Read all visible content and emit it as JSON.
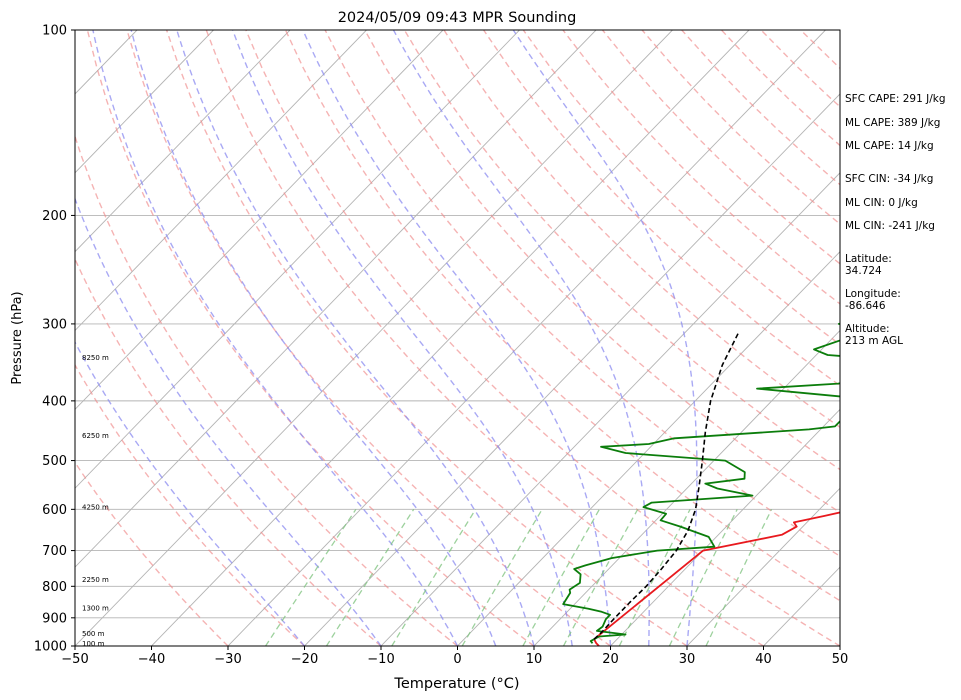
{
  "chart_data": {
    "type": "line",
    "title": "2024/05/09 09:43 MPR Sounding",
    "xlabel": "Temperature (°C)",
    "ylabel": "Pressure (hPa)",
    "xlim": [
      -50,
      50
    ],
    "ylim": [
      1000,
      100
    ],
    "y_scale": "log",
    "skew": "skew-T",
    "x_ticks": [
      -50,
      -40,
      -30,
      -20,
      -10,
      0,
      10,
      20,
      30,
      40,
      50
    ],
    "y_ticks": [
      100,
      200,
      300,
      400,
      500,
      600,
      700,
      800,
      900,
      1000
    ],
    "grid": true,
    "height_labels": [
      {
        "p": 990,
        "text": "100 m"
      },
      {
        "p": 955,
        "text": "500 m"
      },
      {
        "p": 868,
        "text": "1300 m"
      },
      {
        "p": 780,
        "text": "2250 m"
      },
      {
        "p": 595,
        "text": "4250 m"
      },
      {
        "p": 455,
        "text": "6250 m"
      },
      {
        "p": 340,
        "text": "8250 m"
      }
    ],
    "series": [
      {
        "color": "#e8191e",
        "points": [
          [
            1000,
            18.5
          ],
          [
            990,
            17.8
          ],
          [
            975,
            17.0
          ],
          [
            700,
            20.0
          ],
          [
            660,
            28.3
          ],
          [
            640,
            29.2
          ],
          [
            630,
            28.3
          ],
          [
            615,
            31.5
          ],
          [
            600,
            34.5
          ],
          [
            580,
            37.5
          ],
          [
            560,
            39.5
          ],
          [
            545,
            41.0
          ],
          [
            530,
            42.0
          ],
          [
            512,
            40.7
          ],
          [
            495,
            35.7
          ],
          [
            485,
            37.0
          ],
          [
            460,
            35.0
          ],
          [
            440,
            34.5
          ],
          [
            420,
            34.5
          ],
          [
            410,
            35.5
          ],
          [
            395,
            34.5
          ],
          [
            380,
            35.0
          ],
          [
            370,
            38.8
          ],
          [
            360,
            40.5
          ],
          [
            350,
            42.0
          ],
          [
            340,
            43.0
          ],
          [
            330,
            46.8
          ]
        ]
      },
      {
        "color": "#0b7d0b",
        "points": [
          [
            990,
            17.3
          ],
          [
            982,
            16.8
          ],
          [
            965,
            17.3
          ],
          [
            958,
            20.5
          ],
          [
            945,
            16.3
          ],
          [
            930,
            16.5
          ],
          [
            905,
            16.0
          ],
          [
            890,
            16.0
          ],
          [
            880,
            14.5
          ],
          [
            870,
            12.4
          ],
          [
            855,
            8.5
          ],
          [
            820,
            8.0
          ],
          [
            810,
            7.5
          ],
          [
            790,
            8.0
          ],
          [
            765,
            7.0
          ],
          [
            750,
            5.5
          ],
          [
            740,
            6.5
          ],
          [
            720,
            9.0
          ],
          [
            700,
            14.0
          ],
          [
            690,
            21.0
          ],
          [
            665,
            19.0
          ],
          [
            640,
            14.0
          ],
          [
            625,
            10.6
          ],
          [
            610,
            10.5
          ],
          [
            595,
            6.7
          ],
          [
            585,
            7.2
          ],
          [
            570,
            19.5
          ],
          [
            555,
            14.0
          ],
          [
            545,
            11.8
          ],
          [
            535,
            16.3
          ],
          [
            522,
            15.5
          ],
          [
            500,
            11.5
          ],
          [
            486,
            -2.5
          ],
          [
            475,
            -6.5
          ],
          [
            470,
            -0.6
          ],
          [
            460,
            2.0
          ],
          [
            445,
            18.5
          ],
          [
            440,
            21.5
          ],
          [
            430,
            21.5
          ],
          [
            418,
            25.0
          ],
          [
            395,
            20.0
          ],
          [
            382,
            6.5
          ],
          [
            375,
            16.5
          ],
          [
            365,
            22.0
          ],
          [
            355,
            20.5
          ],
          [
            346,
            24.5
          ],
          [
            337,
            11.5
          ],
          [
            330,
            9.0
          ],
          [
            318,
            11.5
          ],
          [
            310,
            14.5
          ],
          [
            300,
            9.0
          ],
          [
            290,
            13.5
          ]
        ]
      },
      {
        "color": "#000000",
        "dashed": true,
        "points": [
          [
            975,
            17.0
          ],
          [
            950,
            17.1
          ],
          [
            900,
            17.0
          ],
          [
            850,
            17.0
          ],
          [
            800,
            17.1
          ],
          [
            750,
            16.9
          ],
          [
            700,
            16.5
          ],
          [
            650,
            15.5
          ],
          [
            600,
            13.8
          ],
          [
            550,
            11.3
          ],
          [
            500,
            8.5
          ],
          [
            450,
            5.3
          ],
          [
            400,
            2.0
          ],
          [
            350,
            -1.0
          ],
          [
            310,
            -3.0
          ]
        ]
      }
    ],
    "annotations": {
      "sfc_cape": "SFC CAPE: 291 J/kg",
      "ml_cape_1": "ML CAPE: 389 J/kg",
      "ml_cape_2": "ML CAPE: 14 J/kg",
      "sfc_cin": "SFC CIN: -34 J/kg",
      "ml_cin_1": "ML CIN: 0 J/kg",
      "ml_cin_2": "ML CIN: -241 J/kg",
      "latitude": "Latitude:\n34.724",
      "longitude": "Longitude:\n-86.646",
      "altitude": "Altitude:\n213 m AGL"
    },
    "colors": {
      "isotherm": "#b4b4b4",
      "dry_adiabat": "#f08a8a",
      "moist_adiabat": "#8c8cf0",
      "mixing_ratio": "#7cc27c",
      "temperature": "#e8191e",
      "dewpoint": "#0b7d0b",
      "parcel": "#000000"
    }
  }
}
